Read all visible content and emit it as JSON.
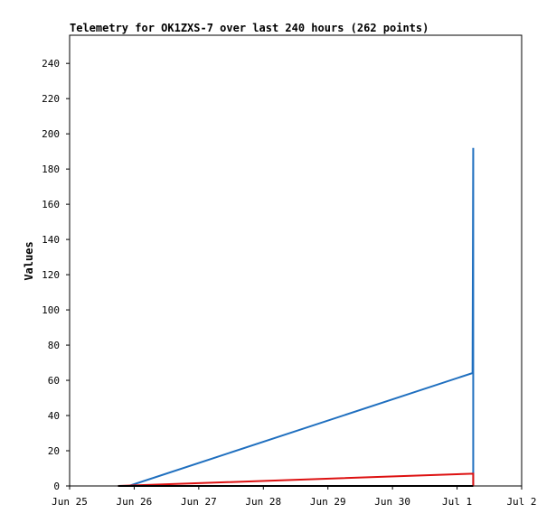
{
  "chart_data": {
    "type": "line",
    "title": "Telemetry for OK1ZXS-7 over last 240 hours (262 points)",
    "xlabel": "",
    "ylabel": "Values",
    "x_ticks": [
      "Jun 25",
      "Jun 26",
      "Jun 27",
      "Jun 28",
      "Jun 29",
      "Jun 30",
      "Jul 1",
      "Jul 2"
    ],
    "y_ticks": [
      "0",
      "20",
      "40",
      "60",
      "80",
      "100",
      "120",
      "140",
      "160",
      "180",
      "200",
      "220",
      "240"
    ],
    "xlim": [
      "2023-06-25",
      "2023-07-02"
    ],
    "ylim": [
      0,
      256
    ],
    "grid": false,
    "series": [
      {
        "color": "#1f6fbf",
        "x": [
          "2023-06-25 18:00",
          "2023-06-25 22:00",
          "2023-07-01 05:30",
          "2023-07-01 05:45",
          "2023-07-01 06:00",
          "2023-07-01 06:00"
        ],
        "values": [
          0,
          0,
          64,
          64,
          192,
          0
        ]
      },
      {
        "color": "#dd1111",
        "x": [
          "2023-06-25 18:00",
          "2023-07-01 06:00",
          "2023-07-01 06:00"
        ],
        "values": [
          0,
          7,
          0
        ]
      },
      {
        "color": "#000000",
        "x": [
          "2023-06-25 18:00",
          "2023-07-01 06:00"
        ],
        "values": [
          0,
          0
        ]
      }
    ]
  }
}
